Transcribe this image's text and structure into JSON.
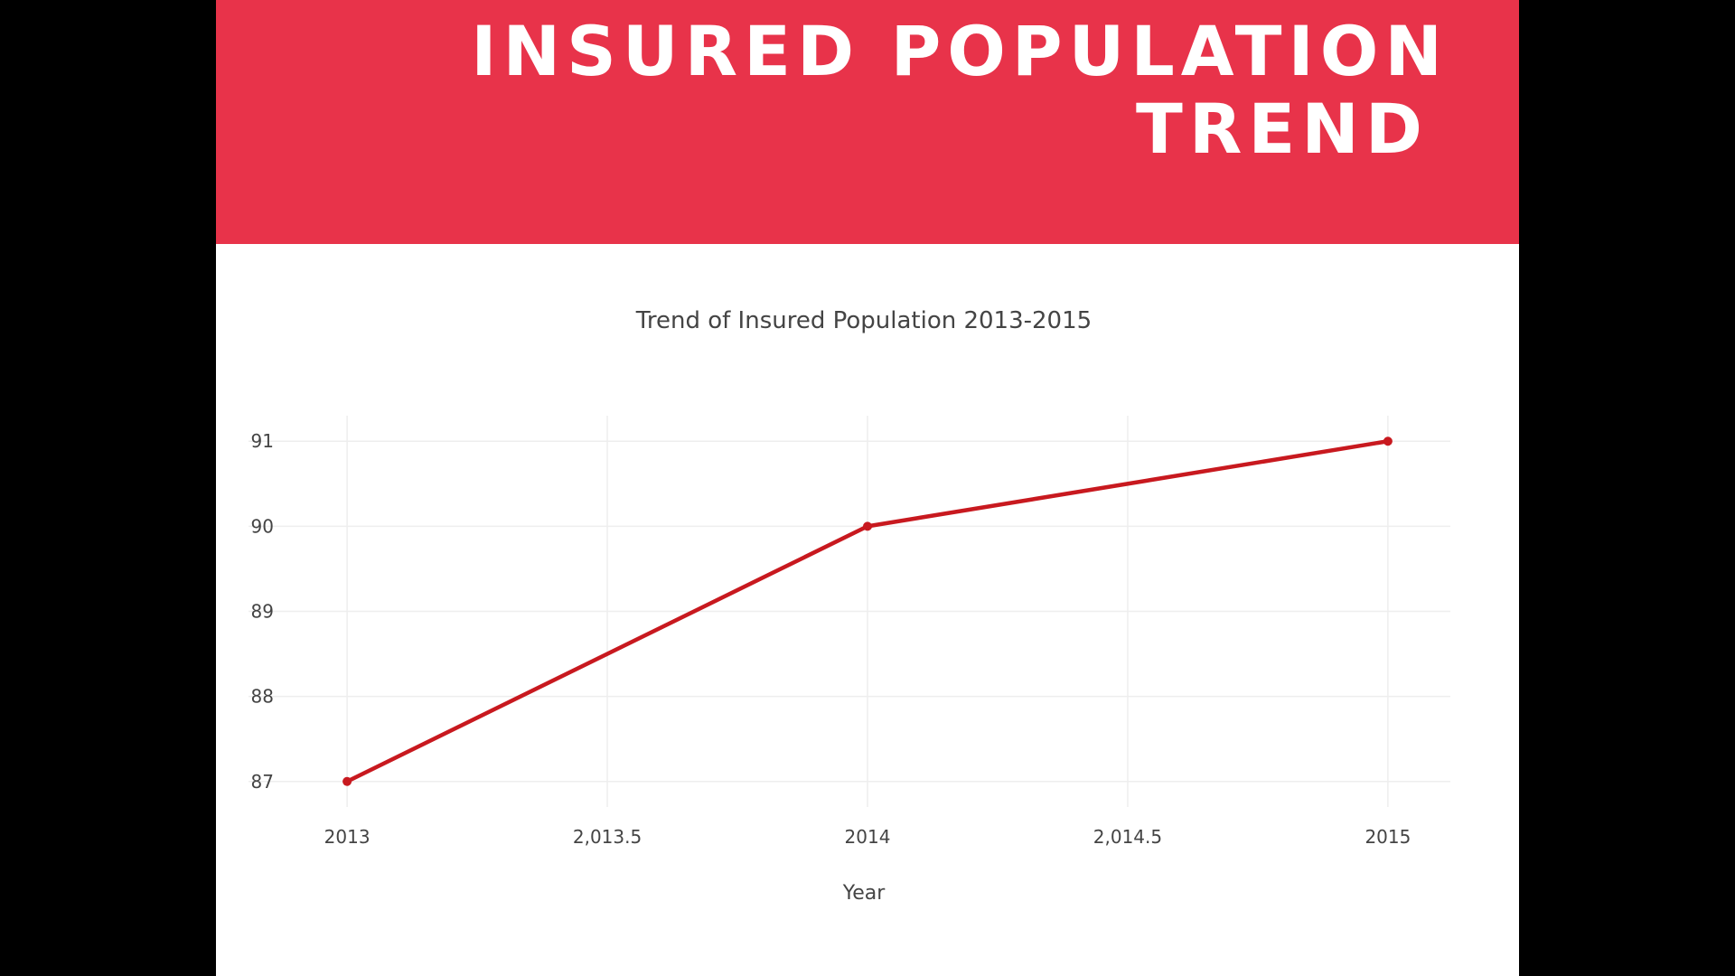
{
  "banner": {
    "title_line1": "INSURED POPULATION",
    "title_line2": "TREND"
  },
  "colors": {
    "banner": "#e8334a",
    "series": "#c8191f",
    "grid": "#eeeeee",
    "text": "#444444"
  },
  "chart_data": {
    "type": "line",
    "title": "Trend of Insured Population 2013-2015",
    "xlabel": "Year",
    "ylabel": "",
    "xlim": [
      2012.88,
      2015.12
    ],
    "ylim": [
      86.7,
      91.3
    ],
    "x_ticks": [
      2013,
      2013.5,
      2014,
      2014.5,
      2015
    ],
    "x_tick_labels": [
      "2013",
      "2,013.5",
      "2014",
      "2,014.5",
      "2015"
    ],
    "y_ticks": [
      87,
      88,
      89,
      90,
      91
    ],
    "y_tick_labels": [
      "87",
      "88",
      "89",
      "90",
      "91"
    ],
    "grid": true,
    "series": [
      {
        "x": [
          2013,
          2014,
          2015
        ],
        "values": [
          87,
          90,
          91
        ]
      }
    ]
  }
}
